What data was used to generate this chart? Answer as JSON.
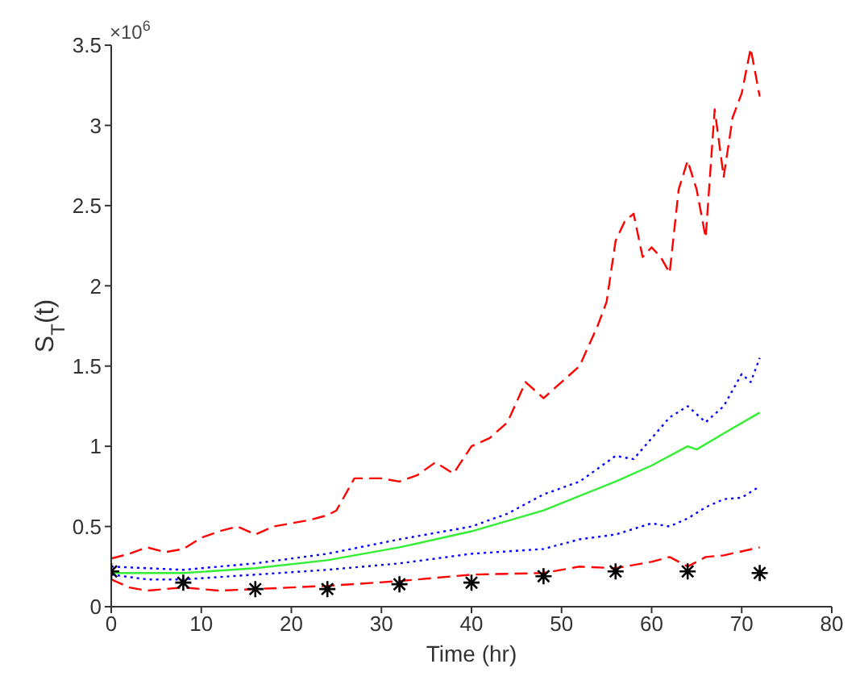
{
  "chart_data": {
    "type": "line",
    "xlabel": "Time (hr)",
    "ylabel": "S$_{T}$(t)",
    "annotations": [
      "×10$^{6}$"
    ],
    "xlim": [
      0,
      80
    ],
    "xticks": [
      0,
      10,
      20,
      30,
      40,
      50,
      60,
      70,
      80
    ],
    "ylim": [
      0,
      3.5
    ],
    "yticks": [
      0,
      0.5,
      1,
      1.5,
      2,
      2.5,
      3,
      3.5
    ],
    "grid": false,
    "series": [
      {
        "color": "#ff0000",
        "line_style": "dashed",
        "x": [
          0,
          2,
          4,
          6,
          8,
          10,
          12,
          14,
          16,
          18,
          20,
          22,
          24,
          25,
          27,
          30,
          32,
          34,
          36,
          38,
          40,
          42,
          44,
          46,
          48,
          50,
          52,
          54,
          55,
          56,
          57,
          58,
          59,
          60,
          61,
          62,
          63,
          64,
          65,
          66,
          67,
          68,
          69,
          70,
          71,
          72
        ],
        "values": [
          0.3,
          0.33,
          0.37,
          0.34,
          0.36,
          0.43,
          0.47,
          0.5,
          0.45,
          0.5,
          0.52,
          0.54,
          0.57,
          0.6,
          0.8,
          0.8,
          0.78,
          0.82,
          0.9,
          0.83,
          1.0,
          1.05,
          1.15,
          1.4,
          1.3,
          1.4,
          1.5,
          1.75,
          1.9,
          2.28,
          2.4,
          2.45,
          2.18,
          2.24,
          2.18,
          2.08,
          2.6,
          2.78,
          2.6,
          2.3,
          3.1,
          2.68,
          3.05,
          3.2,
          3.48,
          3.18
        ]
      },
      {
        "color": "#0000ff",
        "line_style": "dotted",
        "x": [
          0,
          8,
          16,
          24,
          32,
          40,
          44,
          48,
          52,
          56,
          58,
          60,
          62,
          64,
          66,
          68,
          70,
          71,
          72
        ],
        "values": [
          0.25,
          0.23,
          0.27,
          0.33,
          0.42,
          0.5,
          0.58,
          0.7,
          0.78,
          0.94,
          0.92,
          1.05,
          1.18,
          1.25,
          1.15,
          1.25,
          1.45,
          1.4,
          1.55
        ]
      },
      {
        "color": "#33ee33",
        "line_style": "solid",
        "x": [
          0,
          8,
          16,
          24,
          32,
          40,
          48,
          56,
          60,
          64,
          65,
          68,
          72
        ],
        "values": [
          0.21,
          0.21,
          0.24,
          0.29,
          0.37,
          0.47,
          0.6,
          0.78,
          0.88,
          1.0,
          0.98,
          1.08,
          1.21
        ]
      },
      {
        "color": "#0000ff",
        "line_style": "dotted",
        "x": [
          0,
          4,
          8,
          16,
          24,
          32,
          40,
          48,
          52,
          56,
          60,
          62,
          64,
          66,
          68,
          70,
          72
        ],
        "values": [
          0.2,
          0.17,
          0.17,
          0.2,
          0.23,
          0.27,
          0.33,
          0.36,
          0.42,
          0.45,
          0.52,
          0.5,
          0.55,
          0.62,
          0.67,
          0.68,
          0.75
        ]
      },
      {
        "color": "#ff0000",
        "line_style": "dashed",
        "x": [
          0,
          2,
          4,
          8,
          12,
          16,
          24,
          32,
          40,
          48,
          52,
          56,
          60,
          62,
          64,
          66,
          68,
          72
        ],
        "values": [
          0.17,
          0.12,
          0.1,
          0.12,
          0.1,
          0.11,
          0.13,
          0.16,
          0.2,
          0.21,
          0.25,
          0.24,
          0.28,
          0.31,
          0.25,
          0.31,
          0.32,
          0.37
        ]
      },
      {
        "type": "scatter",
        "color": "#000000",
        "marker": "cross",
        "x": [
          0,
          8,
          16,
          24,
          32,
          40,
          48,
          56,
          64,
          72
        ],
        "values": [
          0.22,
          0.15,
          0.11,
          0.11,
          0.14,
          0.15,
          0.19,
          0.22,
          0.22,
          0.21
        ]
      }
    ]
  }
}
